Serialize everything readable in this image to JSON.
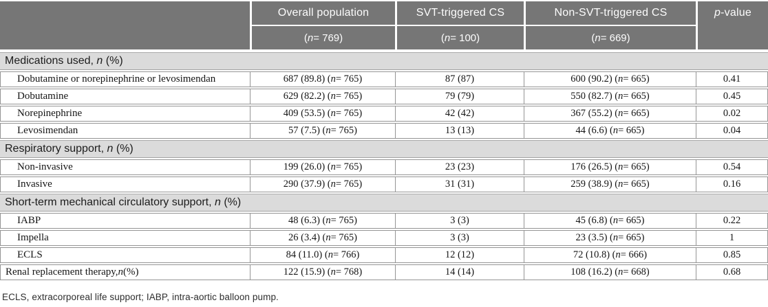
{
  "header": {
    "columns": [
      {
        "label": "",
        "sub": ""
      },
      {
        "label": "Overall population",
        "sub": "(n = 769)"
      },
      {
        "label": "SVT-triggered CS",
        "sub": "(n = 100)"
      },
      {
        "label": "Non-SVT-triggered CS",
        "sub": "(n = 669)"
      },
      {
        "label": "p-value",
        "sub": ""
      }
    ]
  },
  "body": [
    {
      "type": "section",
      "label": "Medications used, n (%)"
    },
    {
      "type": "row",
      "indent": true,
      "label": "Dobutamine or norepinephrine or levosimendan",
      "values": [
        "687 (89.8) (n = 765)",
        "87 (87)",
        "600 (90.2) (n = 665)",
        "0.41"
      ]
    },
    {
      "type": "row",
      "indent": true,
      "label": "Dobutamine",
      "values": [
        "629 (82.2) (n = 765)",
        "79 (79)",
        "550 (82.7) (n = 665)",
        "0.45"
      ]
    },
    {
      "type": "row",
      "indent": true,
      "label": "Norepinephrine",
      "values": [
        "409 (53.5) (n = 765)",
        "42 (42)",
        "367 (55.2) (n = 665)",
        "0.02"
      ]
    },
    {
      "type": "row",
      "indent": true,
      "label": "Levosimendan",
      "values": [
        "57 (7.5) (n = 765)",
        "13 (13)",
        "44 (6.6) (n = 665)",
        "0.04"
      ]
    },
    {
      "type": "section",
      "label": "Respiratory support, n (%)"
    },
    {
      "type": "row",
      "indent": true,
      "label": "Non-invasive",
      "values": [
        "199 (26.0) (n = 765)",
        "23 (23)",
        "176 (26.5) (n = 665)",
        "0.54"
      ]
    },
    {
      "type": "row",
      "indent": true,
      "label": "Invasive",
      "values": [
        "290 (37.9) (n = 765)",
        "31 (31)",
        "259 (38.9) (n = 665)",
        "0.16"
      ]
    },
    {
      "type": "section",
      "label": "Short-term mechanical circulatory support, n (%)"
    },
    {
      "type": "row",
      "indent": true,
      "label": "IABP",
      "values": [
        "48 (6.3) (n = 765)",
        "3 (3)",
        "45 (6.8) (n = 665)",
        "0.22"
      ]
    },
    {
      "type": "row",
      "indent": true,
      "label": "Impella",
      "values": [
        "26 (3.4) (n = 765)",
        "3 (3)",
        "23 (3.5) (n = 665)",
        "1"
      ]
    },
    {
      "type": "row",
      "indent": true,
      "label": "ECLS",
      "values": [
        "84 (11.0) (n = 766)",
        "12 (12)",
        "72 (10.8) (n = 666)",
        "0.85"
      ]
    },
    {
      "type": "row",
      "indent": false,
      "label": "Renal replacement therapy, n (%)",
      "values": [
        "122 (15.9) (n = 768)",
        "14 (14)",
        "108 (16.2) (n = 668)",
        "0.68"
      ]
    }
  ],
  "footnote": "ECLS, extracorporeal life support; IABP, intra-aortic balloon pump.",
  "colors": {
    "header_bg": "#767676",
    "header_text": "#fdfdfd",
    "section_bg": "#dbdbdb",
    "row_border": "#949494",
    "body_text": "#141414"
  }
}
